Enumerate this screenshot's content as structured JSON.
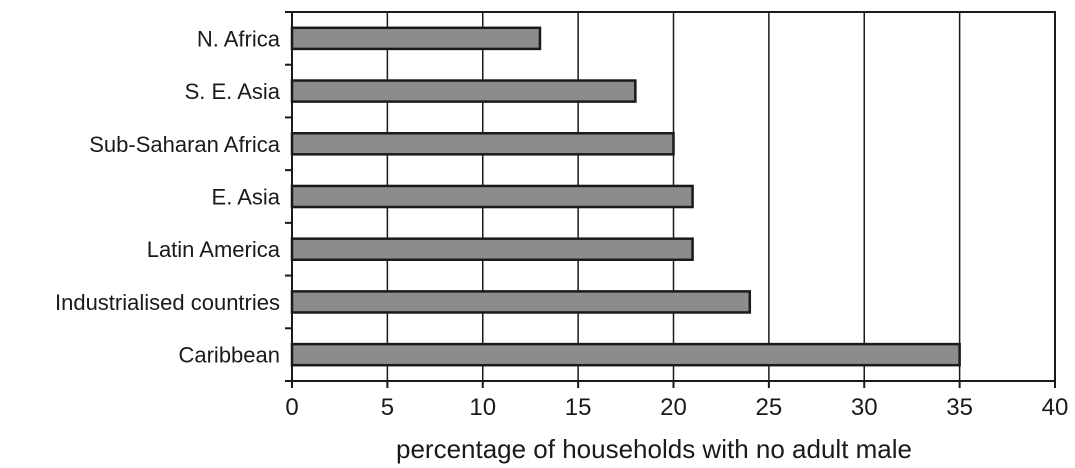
{
  "chart_data": {
    "type": "bar",
    "orientation": "horizontal",
    "categories": [
      "N. Africa",
      "S. E. Asia",
      "Sub-Saharan Africa",
      "E. Asia",
      "Latin America",
      "Industrialised countries",
      "Caribbean"
    ],
    "values": [
      13,
      18,
      20,
      21,
      21,
      24,
      35
    ],
    "xlabel": "percentage of households with no adult male",
    "ylabel": "",
    "xlim": [
      0,
      40
    ],
    "xticks": [
      "0",
      "5",
      "10",
      "15",
      "20",
      "25",
      "30",
      "35",
      "40"
    ],
    "grid": "vertical lines at major x ticks",
    "bar_color": "#8c8c8c",
    "bar_edge_color": "#1a1a1a"
  }
}
